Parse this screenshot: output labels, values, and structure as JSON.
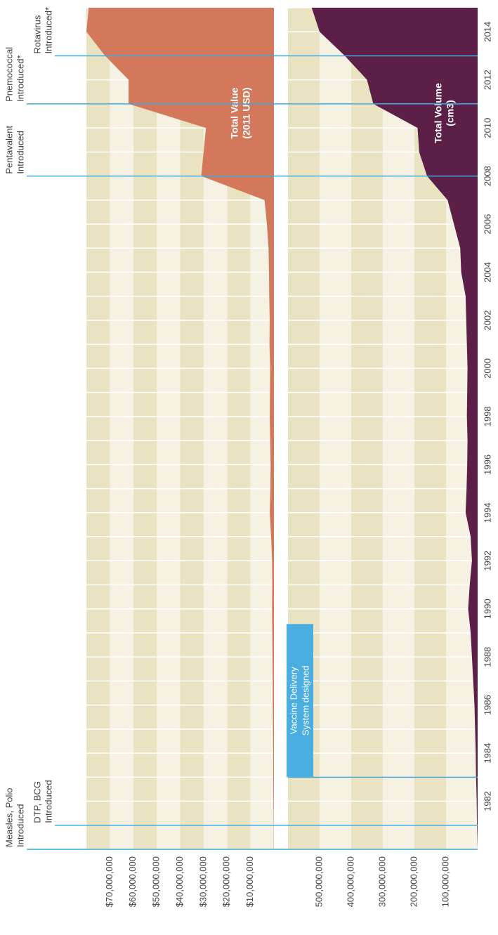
{
  "chart_data": [
    {
      "type": "area",
      "label_lines": [
        "Total Value",
        "(2011 USD)"
      ],
      "color": "#d4785c",
      "x": [
        1980,
        1981,
        1982,
        1983,
        1984,
        1985,
        1986,
        1987,
        1988,
        1989,
        1990,
        1991,
        1992,
        1993,
        1994,
        1995,
        1996,
        1997,
        1998,
        1999,
        2000,
        2001,
        2002,
        2003,
        2004,
        2005,
        2006,
        2007,
        2008,
        2009,
        2010,
        2011,
        2012,
        2013,
        2014,
        2015
      ],
      "values": [
        100000,
        100000,
        200000,
        300000,
        300000,
        400000,
        500000,
        500000,
        600000,
        700000,
        800000,
        700000,
        800000,
        1200000,
        1800000,
        1500000,
        1400000,
        1600000,
        1800000,
        1700000,
        1600000,
        1900000,
        1800000,
        2000000,
        2100000,
        2300000,
        3000000,
        4000000,
        31000000,
        30000000,
        29000000,
        62000000,
        62000000,
        72000000,
        80000000,
        79000000
      ],
      "xlim": [
        1980,
        2015
      ],
      "ylim": [
        0,
        80000000
      ],
      "yticks": [
        {
          "value": 10000000,
          "label": "$10,000,000"
        },
        {
          "value": 20000000,
          "label": "$20,000,000"
        },
        {
          "value": 30000000,
          "label": "$30,000,000"
        },
        {
          "value": 40000000,
          "label": "$40,000,000"
        },
        {
          "value": 50000000,
          "label": "$50,000,000"
        },
        {
          "value": 60000000,
          "label": "$60,000,000"
        },
        {
          "value": 70000000,
          "label": "$70,000,000"
        }
      ]
    },
    {
      "type": "area",
      "label_lines": [
        "Total Volume",
        "(cm3)"
      ],
      "color": "#5c1f48",
      "x": [
        1980,
        1981,
        1982,
        1983,
        1984,
        1985,
        1986,
        1987,
        1988,
        1989,
        1990,
        1991,
        1992,
        1993,
        1994,
        1995,
        1996,
        1997,
        1998,
        1999,
        2000,
        2001,
        2002,
        2003,
        2004,
        2005,
        2006,
        2007,
        2008,
        2009,
        2010,
        2011,
        2012,
        2013,
        2014,
        2015
      ],
      "values": [
        0,
        2000000,
        3000000,
        5000000,
        6000000,
        8000000,
        10000000,
        14000000,
        18000000,
        22000000,
        30000000,
        25000000,
        18000000,
        22000000,
        38000000,
        35000000,
        33000000,
        32000000,
        34000000,
        33000000,
        32000000,
        34000000,
        36000000,
        38000000,
        52000000,
        55000000,
        75000000,
        95000000,
        160000000,
        185000000,
        190000000,
        330000000,
        350000000,
        420000000,
        500000000,
        525000000
      ],
      "xlim": [
        1980,
        2015
      ],
      "ylim": [
        0,
        600000000
      ],
      "yticks": [
        {
          "value": 100000000,
          "label": "100,000,000"
        },
        {
          "value": 200000000,
          "label": "200,000,000"
        },
        {
          "value": 300000000,
          "label": "300,000,000"
        },
        {
          "value": 400000000,
          "label": "400,000,000"
        },
        {
          "value": 500000000,
          "label": "500,000,000"
        }
      ],
      "xticks": [
        1982,
        1984,
        1986,
        1988,
        1990,
        1992,
        1994,
        1996,
        1998,
        2000,
        2002,
        2004,
        2006,
        2008,
        2010,
        2012,
        2014
      ],
      "annotations": [
        {
          "label_lines": [
            "Vaccine Delivery",
            "System designed"
          ],
          "x": 1983
        }
      ]
    }
  ],
  "events": [
    {
      "label_lines": [
        "Measles, Polio",
        "Introduced"
      ],
      "x": 1980
    },
    {
      "label_lines": [
        "DTP, BCG",
        "Introduced"
      ],
      "x": 1981
    },
    {
      "label_lines": [
        "Pentavalent",
        "Introduced"
      ],
      "x": 2008
    },
    {
      "label_lines": [
        "Pnemococcal",
        "Introduced*"
      ],
      "x": 2011
    },
    {
      "label_lines": [
        "Rotavirus",
        "Introduced*"
      ],
      "x": 2013
    }
  ]
}
